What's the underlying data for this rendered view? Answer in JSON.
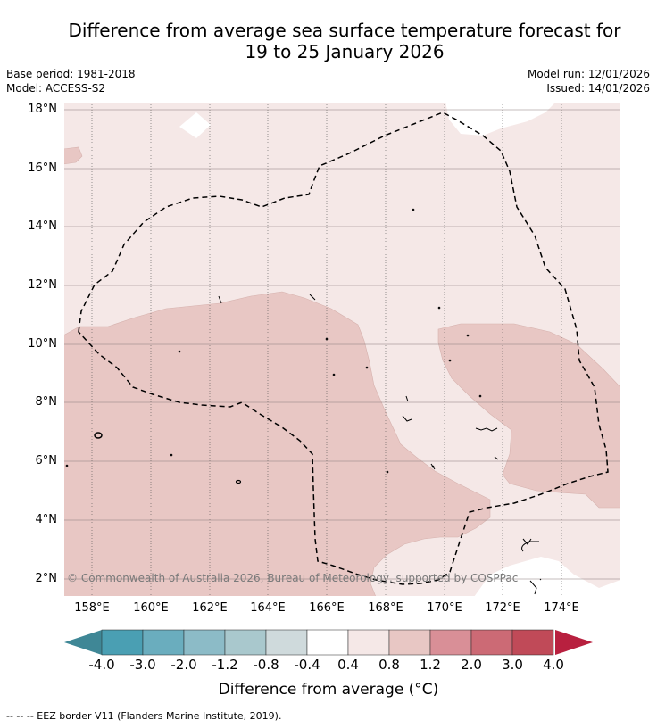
{
  "title_line1": "Difference from average sea surface temperature forecast for",
  "title_line2": "19 to 25 January 2026",
  "base_period": "Base period: 1981-2018",
  "model": "Model: ACCESS-S2",
  "model_run": "Model run: 12/01/2026",
  "issued": "Issued: 14/01/2026",
  "lat_labels": [
    "18°N",
    "16°N",
    "14°N",
    "12°N",
    "10°N",
    "8°N",
    "6°N",
    "4°N",
    "2°N"
  ],
  "lon_labels": [
    "158°E",
    "160°E",
    "162°E",
    "164°E",
    "166°E",
    "168°E",
    "170°E",
    "172°E",
    "174°E"
  ],
  "copyright": "© Commonwealth of Australia 2026, Bureau of Meteorology, supported by COSPPac",
  "colorbar": {
    "ticks": [
      "-4.0",
      "-3.0",
      "-2.0",
      "-1.2",
      "-0.8",
      "-0.4",
      "0.4",
      "0.8",
      "1.2",
      "2.0",
      "3.0",
      "4.0"
    ],
    "colors": [
      "#4a9fb3",
      "#6aadbe",
      "#8cbbc7",
      "#a9c8cd",
      "#cfdadc",
      "#ffffff",
      "#f5e8e7",
      "#e8c7c4",
      "#d98f97",
      "#cc6a75",
      "#c04a58"
    ],
    "under_color": "#3f8796",
    "over_color": "#b8203f",
    "title": "Difference from average (°C)"
  },
  "legend": "-- -- -- EEZ border V11 (Flanders Marine Institute, 2019)."
}
